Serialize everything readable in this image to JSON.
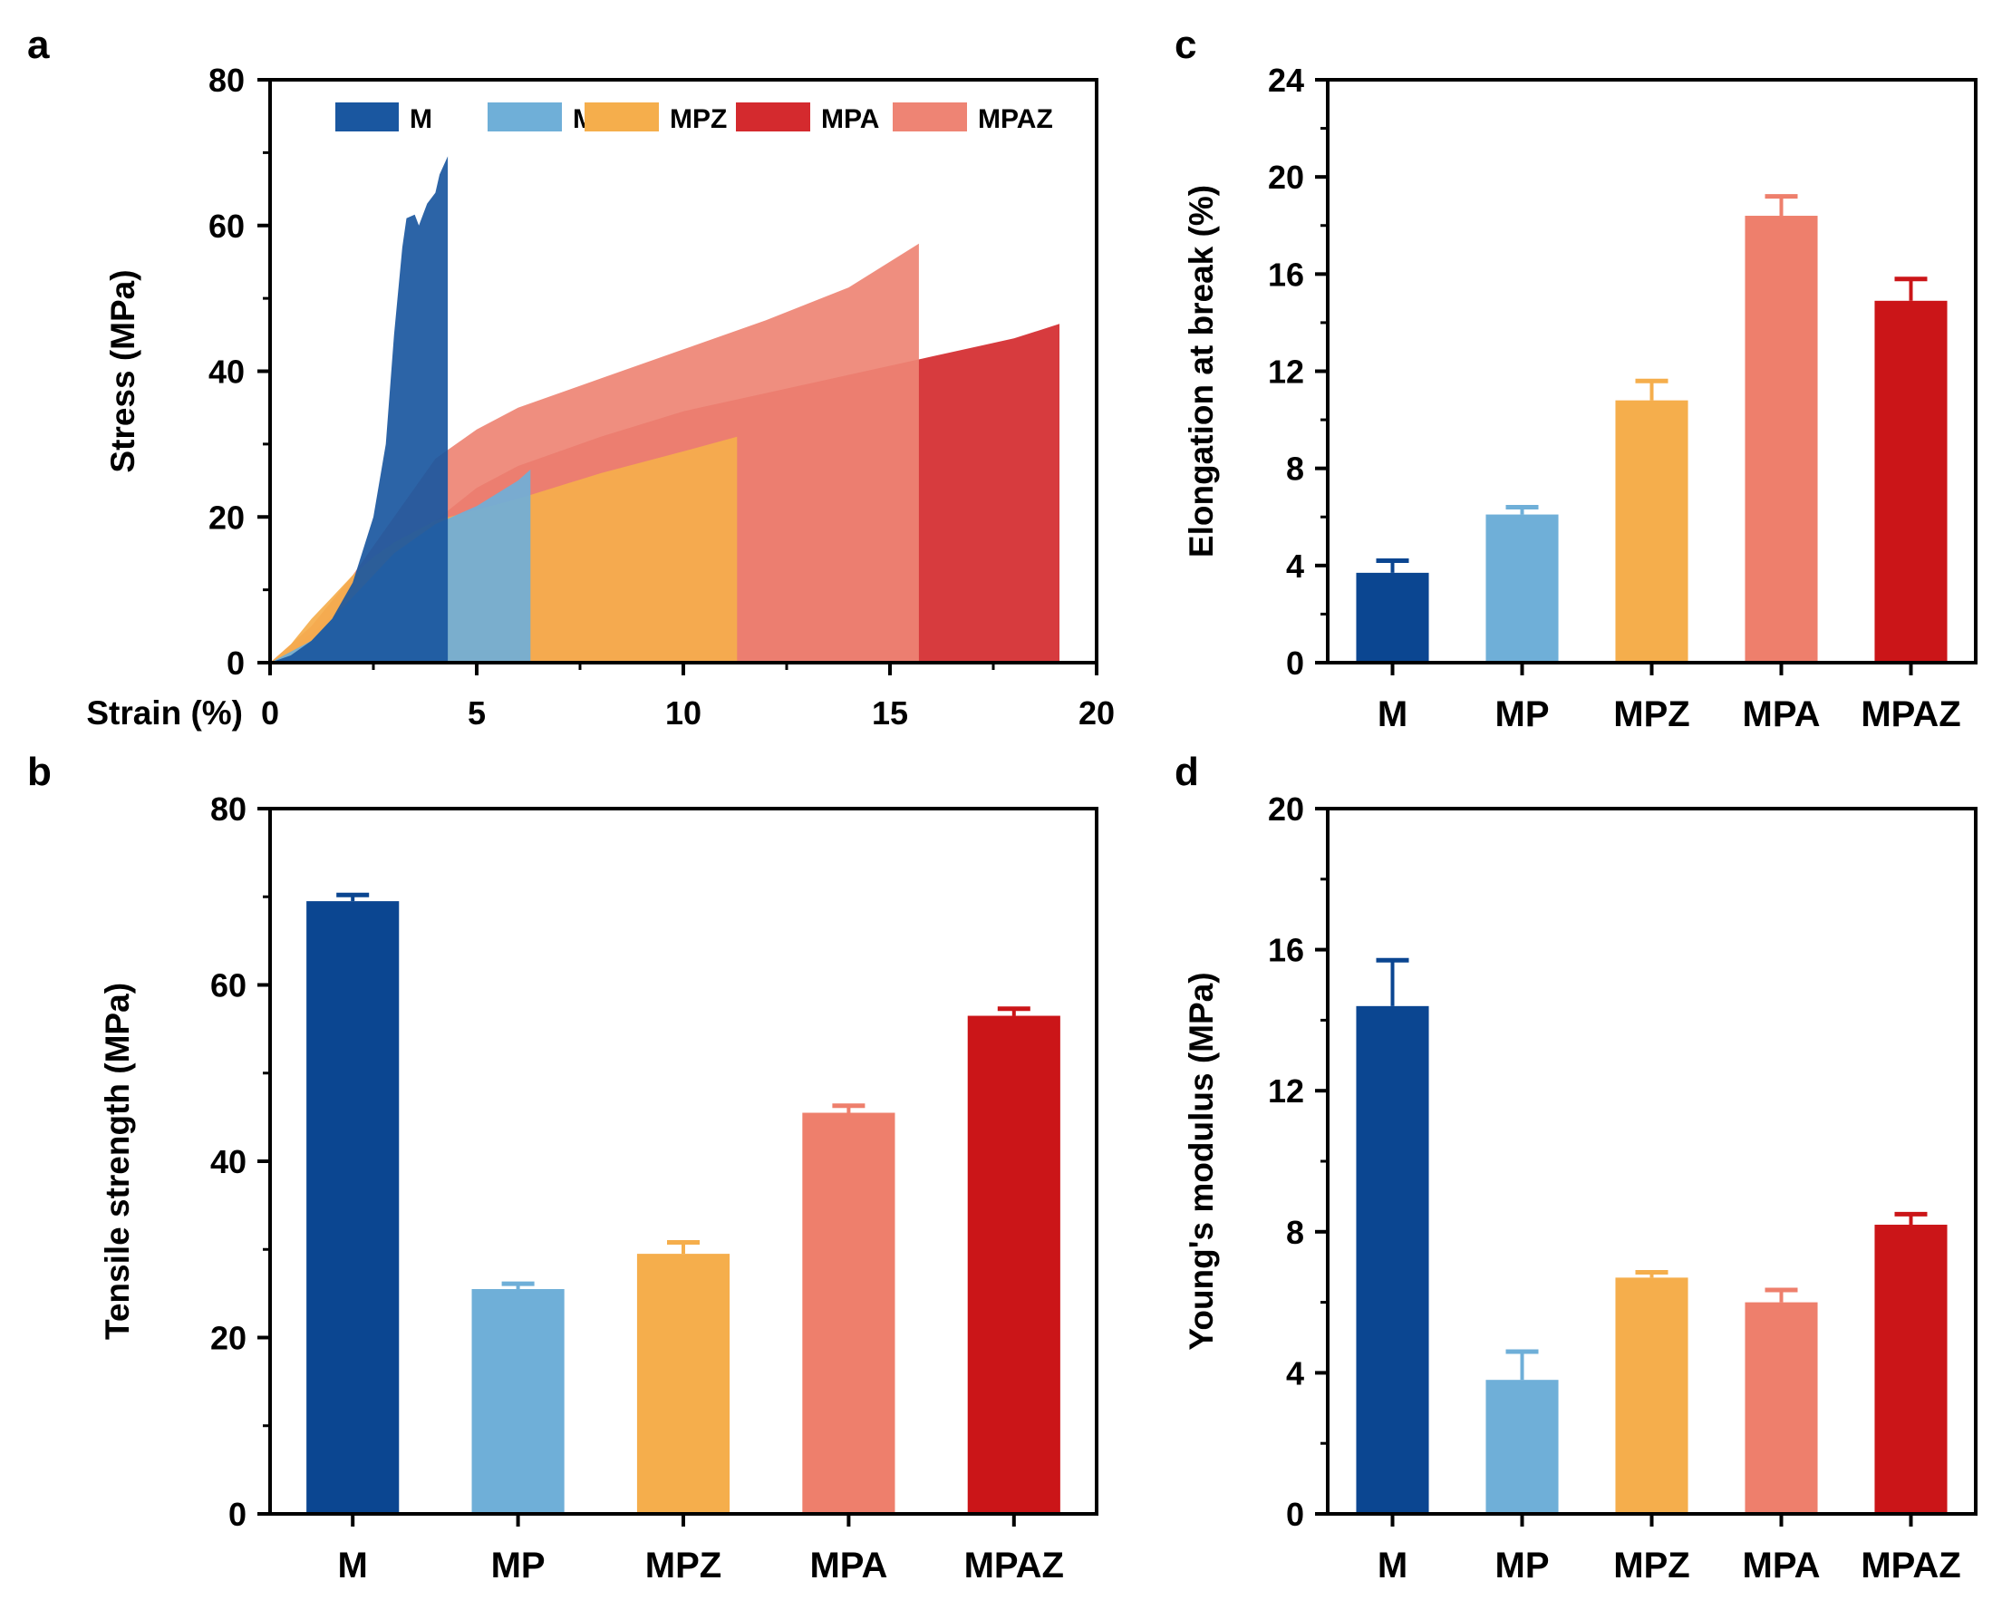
{
  "colors": {
    "M": "#1a57a0",
    "MP": "#6fafd8",
    "MPZ": "#f5ae4c",
    "MPA": "#d42a2e",
    "MPAZ": "#ee8474",
    "bar_M": "#0b4691",
    "bar_MP": "#6fafd8",
    "bar_MPZ": "#f5ae4c",
    "bar_MPA": "#ee7f6c",
    "bar_MPAZ": "#cb1518"
  },
  "chart_data": [
    {
      "panel": "a",
      "type": "area",
      "xlabel": "Strain (%)",
      "ylabel": "Stress (MPa)",
      "xlim": [
        0,
        20
      ],
      "ylim": [
        0,
        80
      ],
      "xticks": [
        0,
        5,
        10,
        15,
        20
      ],
      "yticks": [
        0,
        20,
        40,
        60,
        80
      ],
      "legend": [
        "M",
        "MP",
        "MPZ",
        "MPA",
        "MPAZ"
      ],
      "legend_position": "top",
      "series": [
        {
          "name": "MPA",
          "color_key": "MPA",
          "points": [
            [
              0,
              0
            ],
            [
              1,
              4
            ],
            [
              2,
              9
            ],
            [
              3,
              14
            ],
            [
              4,
              19.5
            ],
            [
              5,
              24
            ],
            [
              6,
              27
            ],
            [
              8,
              31
            ],
            [
              10,
              34.5
            ],
            [
              12,
              37
            ],
            [
              14,
              39.5
            ],
            [
              16,
              42
            ],
            [
              18,
              44.5
            ],
            [
              19.1,
              46.5
            ],
            [
              19.1,
              0
            ]
          ]
        },
        {
          "name": "MPAZ",
          "color_key": "MPAZ",
          "points": [
            [
              0,
              0
            ],
            [
              1,
              5
            ],
            [
              2,
              12
            ],
            [
              3,
              20
            ],
            [
              4,
              28
            ],
            [
              5,
              32
            ],
            [
              6,
              35
            ],
            [
              8,
              39
            ],
            [
              10,
              43
            ],
            [
              12,
              47
            ],
            [
              14,
              51.5
            ],
            [
              15.7,
              57.5
            ],
            [
              15.7,
              0
            ]
          ]
        },
        {
          "name": "MPZ",
          "color_key": "MPZ",
          "points": [
            [
              0,
              0
            ],
            [
              0.5,
              2.5
            ],
            [
              1,
              6
            ],
            [
              1.5,
              9
            ],
            [
              2,
              12
            ],
            [
              2.5,
              14.5
            ],
            [
              3,
              16.5
            ],
            [
              4,
              19.5
            ],
            [
              5,
              21
            ],
            [
              6,
              22.5
            ],
            [
              8,
              26
            ],
            [
              10,
              29
            ],
            [
              11.3,
              31
            ],
            [
              11.3,
              0
            ]
          ]
        },
        {
          "name": "MP",
          "color_key": "MP",
          "points": [
            [
              0,
              0
            ],
            [
              1,
              3
            ],
            [
              2,
              9
            ],
            [
              3,
              15
            ],
            [
              4,
              19
            ],
            [
              5,
              21.5
            ],
            [
              6,
              25
            ],
            [
              6.3,
              26.5
            ],
            [
              6.3,
              0
            ]
          ]
        },
        {
          "name": "M",
          "color_key": "M",
          "points": [
            [
              0,
              0
            ],
            [
              0.5,
              1
            ],
            [
              1,
              3
            ],
            [
              1.5,
              6
            ],
            [
              2,
              11
            ],
            [
              2.5,
              20
            ],
            [
              2.8,
              30
            ],
            [
              3,
              45
            ],
            [
              3.2,
              57
            ],
            [
              3.3,
              61
            ],
            [
              3.5,
              61.5
            ],
            [
              3.6,
              60
            ],
            [
              3.8,
              63
            ],
            [
              4,
              64.5
            ],
            [
              4.1,
              67
            ],
            [
              4.3,
              69.5
            ],
            [
              4.3,
              0
            ]
          ]
        }
      ]
    },
    {
      "panel": "b",
      "type": "bar",
      "ylabel": "Tensile strength (MPa)",
      "categories": [
        "M",
        "MP",
        "MPZ",
        "MPA",
        "MPAZ"
      ],
      "values": [
        69.5,
        25.5,
        29.5,
        45.5,
        56.5
      ],
      "errors": [
        0.7,
        0.6,
        1.3,
        0.8,
        0.8
      ],
      "ylim": [
        0,
        80
      ],
      "yticks": [
        0,
        20,
        40,
        60,
        80
      ],
      "color_keys": [
        "bar_M",
        "bar_MP",
        "bar_MPZ",
        "bar_MPA",
        "bar_MPAZ"
      ]
    },
    {
      "panel": "c",
      "type": "bar",
      "ylabel": "Elongation at break (%)",
      "categories": [
        "M",
        "MP",
        "MPZ",
        "MPA",
        "MPAZ"
      ],
      "values": [
        3.7,
        6.1,
        10.8,
        18.4,
        14.9
      ],
      "errors": [
        0.5,
        0.3,
        0.8,
        0.8,
        0.9
      ],
      "ylim": [
        0,
        24
      ],
      "yticks": [
        0,
        4,
        8,
        12,
        16,
        20,
        24
      ],
      "color_keys": [
        "bar_M",
        "bar_MP",
        "bar_MPZ",
        "bar_MPA",
        "bar_MPAZ"
      ]
    },
    {
      "panel": "d",
      "type": "bar",
      "ylabel": "Young's modulus  (MPa)",
      "categories": [
        "M",
        "MP",
        "MPZ",
        "MPA",
        "MPAZ"
      ],
      "values": [
        14.4,
        3.8,
        6.7,
        6.0,
        8.2
      ],
      "errors": [
        1.3,
        0.8,
        0.15,
        0.35,
        0.3
      ],
      "ylim": [
        0,
        20
      ],
      "yticks": [
        0,
        4,
        8,
        12,
        16,
        20
      ],
      "color_keys": [
        "bar_M",
        "bar_MP",
        "bar_MPZ",
        "bar_MPA",
        "bar_MPAZ"
      ]
    }
  ]
}
